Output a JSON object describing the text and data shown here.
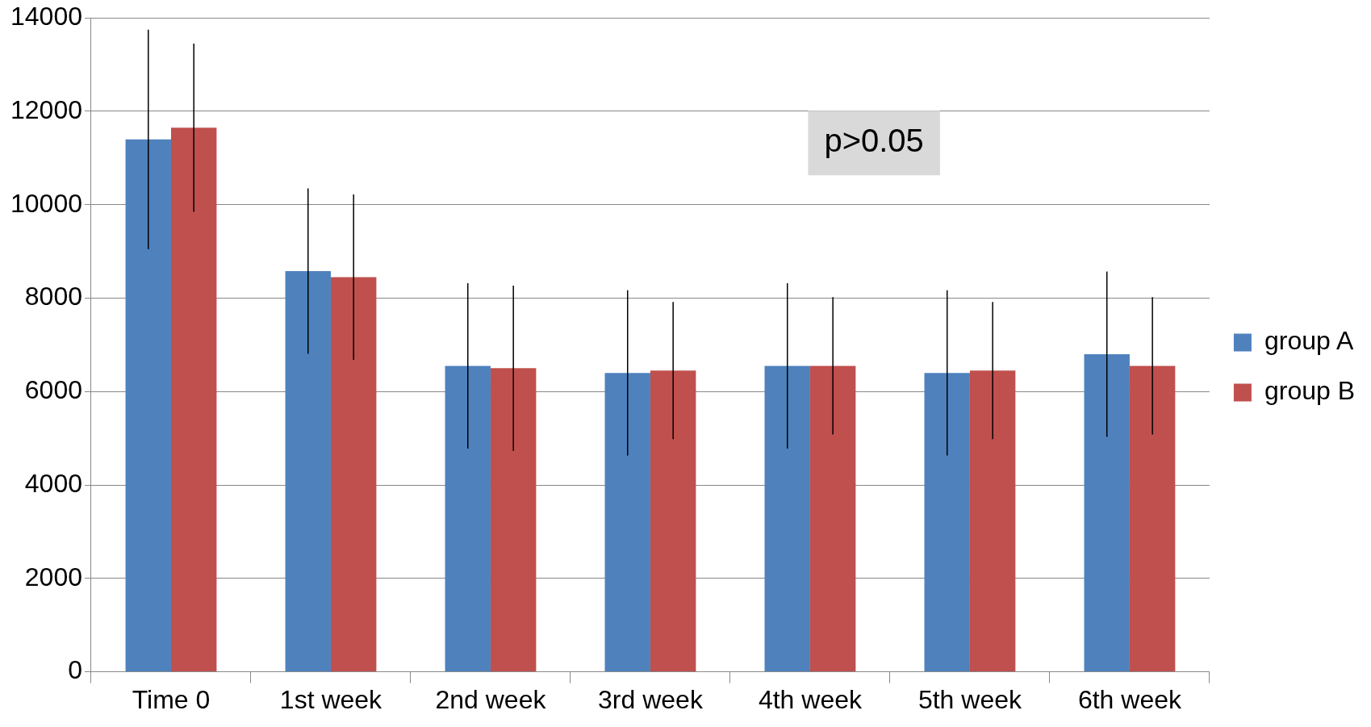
{
  "chart_data": {
    "type": "bar",
    "categories": [
      "Time 0",
      "1st week",
      "2nd week",
      "3rd week",
      "4th week",
      "5th week",
      "6th week"
    ],
    "series": [
      {
        "name": "group A",
        "color": "#4f81bd",
        "values": [
          11400,
          8580,
          6550,
          6400,
          6550,
          6400,
          6800
        ],
        "errors": [
          2350,
          1770,
          1770,
          1770,
          1770,
          1770,
          1770
        ]
      },
      {
        "name": "group B",
        "color": "#c0504d",
        "values": [
          11650,
          8450,
          6500,
          6450,
          6550,
          6450,
          6550
        ],
        "errors": [
          1800,
          1770,
          1770,
          1470,
          1470,
          1470,
          1470
        ]
      }
    ],
    "ylim": [
      0,
      14000
    ],
    "yticks": [
      0,
      2000,
      4000,
      6000,
      8000,
      10000,
      12000,
      14000
    ],
    "grid": "y",
    "legend": "right",
    "annotations": [
      "p>0.05"
    ]
  }
}
